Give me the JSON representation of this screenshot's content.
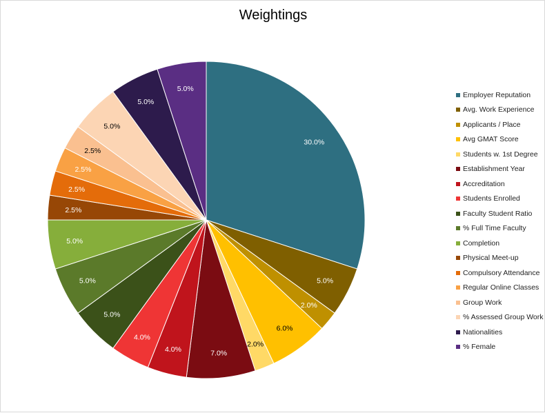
{
  "chart_data": {
    "type": "pie",
    "title": "Weightings",
    "legend_position": "right",
    "slices": [
      {
        "label": "Employer Reputation",
        "value": 30.0,
        "display": "30.0%",
        "color": "#2E6F81",
        "label_color": "#ffffff"
      },
      {
        "label": "Avg. Work Experience",
        "value": 5.0,
        "display": "5.0%",
        "color": "#7F5F00",
        "label_color": "#ffffff"
      },
      {
        "label": "Applicants / Place",
        "value": 2.0,
        "display": "2.0%",
        "color": "#BF9000",
        "label_color": "#ffffff"
      },
      {
        "label": "Avg GMAT Score",
        "value": 6.0,
        "display": "6.0%",
        "color": "#FFC000",
        "label_color": "#000000"
      },
      {
        "label": "Students w. 1st Degree",
        "value": 2.0,
        "display": "2.0%",
        "color": "#FFD966",
        "label_color": "#000000"
      },
      {
        "label": "Establishment Year",
        "value": 7.0,
        "display": "7.0%",
        "color": "#7B0C12",
        "label_color": "#ffffff"
      },
      {
        "label": "Accreditation",
        "value": 4.0,
        "display": "4.0%",
        "color": "#C0141C",
        "label_color": "#ffffff"
      },
      {
        "label": "Students Enrolled",
        "value": 4.0,
        "display": "4.0%",
        "color": "#EF3535",
        "label_color": "#ffffff"
      },
      {
        "label": "Faculty Student Ratio",
        "value": 5.0,
        "display": "5.0%",
        "color": "#3B5119",
        "label_color": "#ffffff"
      },
      {
        "label": "% Full Time Faculty",
        "value": 5.0,
        "display": "5.0%",
        "color": "#5B7A2A",
        "label_color": "#ffffff"
      },
      {
        "label": "Completion",
        "value": 5.0,
        "display": "5.0%",
        "color": "#86AE3B",
        "label_color": "#ffffff"
      },
      {
        "label": "Physical Meet-up",
        "value": 2.5,
        "display": "2.5%",
        "color": "#974706",
        "label_color": "#ffffff"
      },
      {
        "label": "Compulsory Attendance",
        "value": 2.5,
        "display": "2.5%",
        "color": "#E46C0A",
        "label_color": "#ffffff"
      },
      {
        "label": "Regular Online Classes",
        "value": 2.5,
        "display": "2.5%",
        "color": "#F9A144",
        "label_color": "#ffffff"
      },
      {
        "label": "Group Work",
        "value": 2.5,
        "display": "2.5%",
        "color": "#FAC090",
        "label_color": "#000000"
      },
      {
        "label": "% Assessed Group Work",
        "value": 5.0,
        "display": "5.0%",
        "color": "#FCD5B4",
        "label_color": "#000000"
      },
      {
        "label": "Nationalities",
        "value": 5.0,
        "display": "5.0%",
        "color": "#2D1B4C",
        "label_color": "#ffffff"
      },
      {
        "label": "% Female",
        "value": 5.0,
        "display": "5.0%",
        "color": "#5A2E83",
        "label_color": "#ffffff"
      }
    ]
  }
}
